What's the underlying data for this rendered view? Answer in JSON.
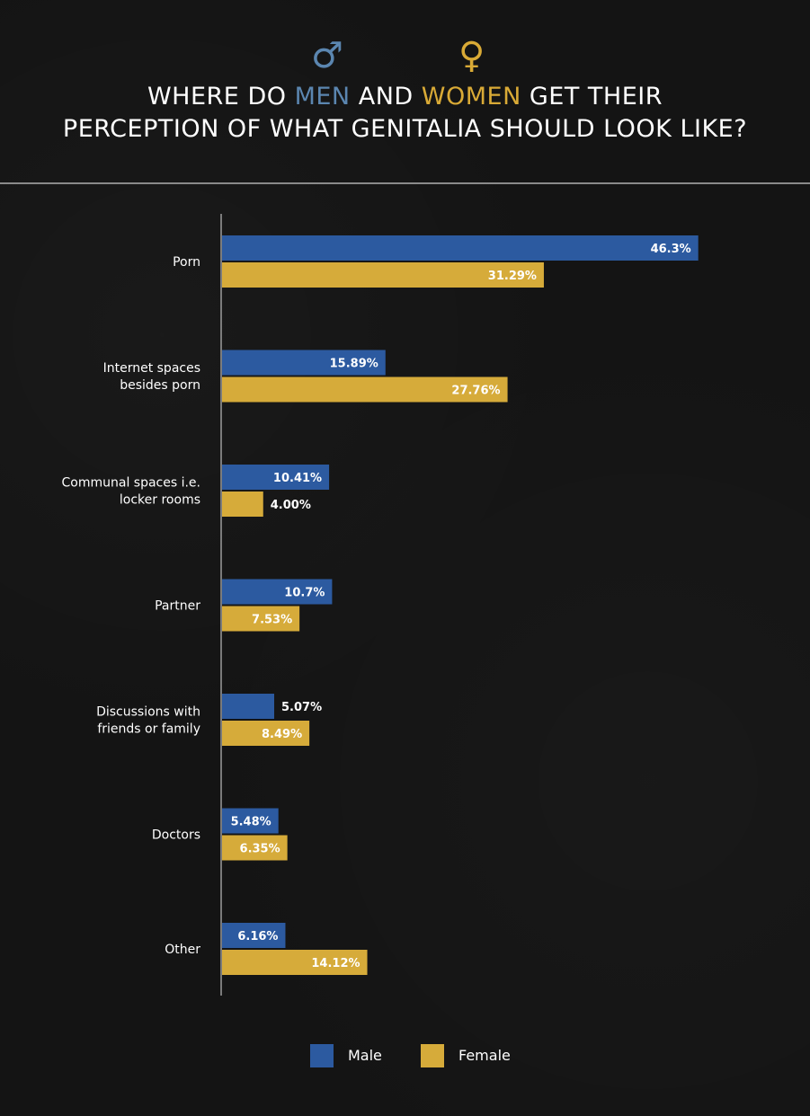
{
  "header": {
    "male_symbol": "♂",
    "female_symbol": "♀",
    "title_line1_a": "WHERE DO ",
    "title_line1_men": "MEN",
    "title_line1_b": " AND ",
    "title_line1_women": "WOMEN",
    "title_line1_c": " GET THEIR",
    "title_line2": "PERCEPTION OF WHAT GENITALIA SHOULD LOOK LIKE?"
  },
  "colors": {
    "male": "#2c5aa0",
    "female": "#d6ab3a",
    "background": "#141414",
    "axis": "#e0e0e0"
  },
  "chart_data": {
    "type": "bar",
    "orientation": "horizontal",
    "categories": [
      [
        "Porn"
      ],
      [
        "Internet spaces",
        "besides porn"
      ],
      [
        "Communal spaces i.e.",
        "locker rooms"
      ],
      [
        "Partner"
      ],
      [
        "Discussions with",
        "friends or family"
      ],
      [
        "Doctors"
      ],
      [
        "Other"
      ]
    ],
    "series": [
      {
        "name": "Male",
        "values": [
          46.3,
          15.89,
          10.41,
          10.7,
          5.07,
          5.48,
          6.16
        ],
        "labels": [
          "46.3%",
          "15.89%",
          "10.41%",
          "10.7%",
          "5.07%",
          "5.48%",
          "6.16%"
        ]
      },
      {
        "name": "Female",
        "values": [
          31.29,
          27.76,
          4.0,
          7.53,
          8.49,
          6.35,
          14.12
        ],
        "labels": [
          "31.29%",
          "27.76%",
          "4.00%",
          "7.53%",
          "8.49%",
          "6.35%",
          "14.12%"
        ]
      }
    ],
    "xlim": [
      0,
      50
    ],
    "grid": false,
    "legend": "bottom-center"
  },
  "legend": {
    "male_label": "Male",
    "female_label": "Female"
  }
}
